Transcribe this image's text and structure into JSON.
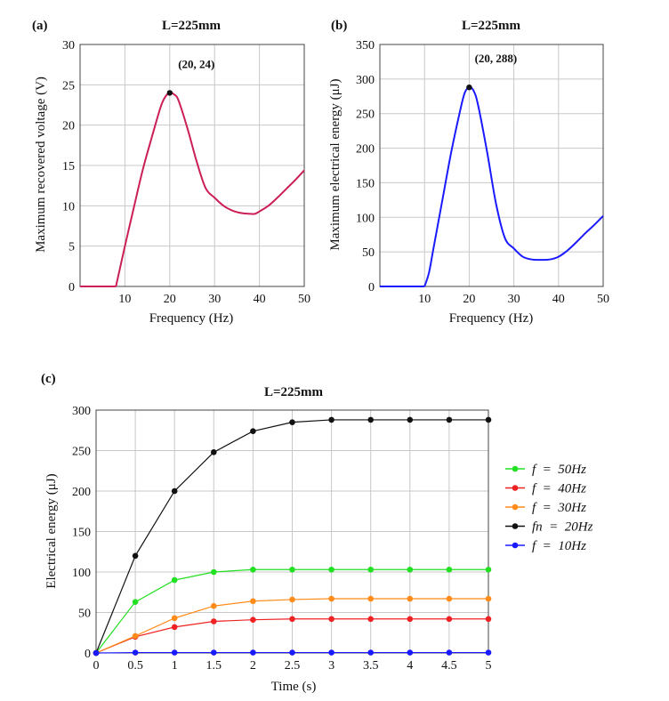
{
  "chart_data": [
    {
      "type": "line",
      "panel": "(a)",
      "title": "L=225mm",
      "xlabel": "Frequency (Hz)",
      "ylabel": "Maximum recovered voltage (V)",
      "xlim": [
        0,
        50
      ],
      "ylim": [
        0,
        30
      ],
      "xticks": [
        10,
        20,
        30,
        40,
        50
      ],
      "yticks": [
        0,
        5,
        10,
        15,
        20,
        25,
        30
      ],
      "color": "#cc1f55",
      "series": [
        {
          "name": "voltage",
          "x": [
            0,
            5.5,
            8,
            9,
            10,
            12,
            14,
            16,
            18,
            19,
            20,
            21,
            22,
            24,
            26,
            28,
            30,
            32,
            34,
            36,
            38,
            39,
            40,
            42,
            44,
            46,
            48,
            50
          ],
          "y": [
            0,
            0,
            0,
            2.5,
            5,
            9.8,
            14.5,
            18.5,
            22.3,
            23.5,
            24,
            23.8,
            23,
            19.5,
            15.5,
            12.2,
            11,
            10,
            9.4,
            9.1,
            9.0,
            9.0,
            9.3,
            10,
            11,
            12.1,
            13.2,
            14.4
          ]
        }
      ],
      "marker": {
        "x": 20,
        "y": 24,
        "label": "(20, 24)"
      }
    },
    {
      "type": "line",
      "panel": "(b)",
      "title": "L=225mm",
      "xlabel": "Frequency (Hz)",
      "ylabel": "Maximum electrical energy (μJ)",
      "xlim": [
        0,
        50
      ],
      "ylim": [
        0,
        350
      ],
      "xticks": [
        10,
        20,
        30,
        40,
        50
      ],
      "yticks": [
        0,
        50,
        100,
        150,
        200,
        250,
        300,
        350
      ],
      "color": "#1a1aff",
      "series": [
        {
          "name": "energy",
          "x": [
            0,
            5.5,
            10,
            11,
            12,
            14,
            16,
            18,
            19,
            20,
            21,
            22,
            24,
            26,
            28,
            30,
            32,
            34,
            36,
            38,
            40,
            42,
            44,
            46,
            48,
            50
          ],
          "y": [
            0,
            0,
            0,
            20,
            55,
            125,
            195,
            255,
            280,
            288,
            283,
            262,
            195,
            120,
            70,
            55,
            43,
            39,
            38.5,
            39,
            43,
            52,
            64,
            77,
            89,
            102
          ]
        }
      ],
      "marker": {
        "x": 20,
        "y": 288,
        "label": "(20, 288)"
      }
    },
    {
      "type": "line",
      "panel": "(c)",
      "title": "L=225mm",
      "xlabel": "Time (s)",
      "ylabel": "Electrical energy (μJ)",
      "xlim": [
        0,
        5
      ],
      "ylim": [
        0,
        300
      ],
      "xticks": [
        "0",
        "0.5",
        "1",
        "1.5",
        "2",
        "2.5",
        "3",
        "3.5",
        "4",
        "4.5",
        "5"
      ],
      "yticks": [
        0,
        50,
        100,
        150,
        200,
        250,
        300
      ],
      "x": [
        0,
        0.5,
        1,
        1.5,
        2,
        2.5,
        3,
        3.5,
        4,
        4.5,
        5
      ],
      "legend_position": "right",
      "series": [
        {
          "name": "f  =  50Hz",
          "color": "#22e022",
          "values": [
            0,
            63,
            90,
            100,
            103,
            103,
            103,
            103,
            103,
            103,
            103
          ]
        },
        {
          "name": "f  =  40Hz",
          "color": "#ee2222",
          "values": [
            0,
            20,
            32,
            39,
            41,
            42,
            42,
            42,
            42,
            42,
            42
          ]
        },
        {
          "name": "f  =  30Hz",
          "color": "#ff8c1a",
          "values": [
            0,
            21,
            43,
            58,
            64,
            66,
            67,
            67,
            67,
            67,
            67
          ]
        },
        {
          "name": "fn  =  20Hz",
          "color": "#111111",
          "values": [
            0,
            120,
            200,
            248,
            274,
            285,
            288,
            288,
            288,
            288,
            288
          ]
        },
        {
          "name": "f  =  10Hz",
          "color": "#1a1aff",
          "values": [
            0,
            0.5,
            0.5,
            0.5,
            0.5,
            0.5,
            0.5,
            0.5,
            0.5,
            0.5,
            0.5
          ]
        }
      ]
    }
  ]
}
